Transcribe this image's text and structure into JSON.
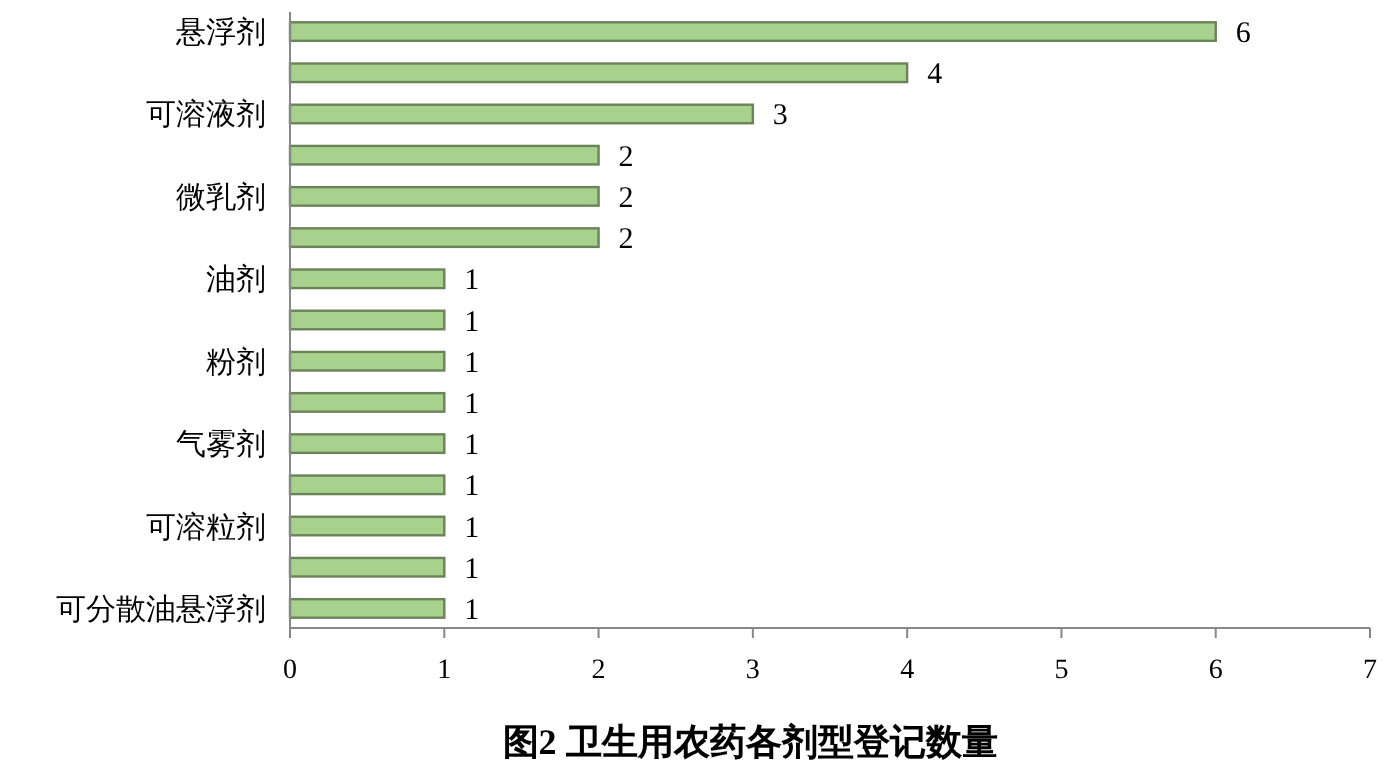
{
  "chart_data": {
    "type": "bar",
    "orientation": "horizontal",
    "title": "图2  卫生用农药各剂型登记数量",
    "categories": [
      "悬浮剂",
      null,
      "可溶液剂",
      null,
      "微乳剂",
      null,
      "油剂",
      null,
      "粉剂",
      null,
      "气雾剂",
      null,
      "可溶粒剂",
      null,
      "可分散油悬浮剂"
    ],
    "values": [
      6,
      4,
      3,
      2,
      2,
      2,
      1,
      1,
      1,
      1,
      1,
      1,
      1,
      1,
      1
    ],
    "color": "#a9d18e",
    "xlim": [
      0,
      7
    ],
    "xticks": [
      0,
      1,
      2,
      3,
      4,
      5,
      6,
      7
    ],
    "data_labels": true,
    "grid": false
  }
}
